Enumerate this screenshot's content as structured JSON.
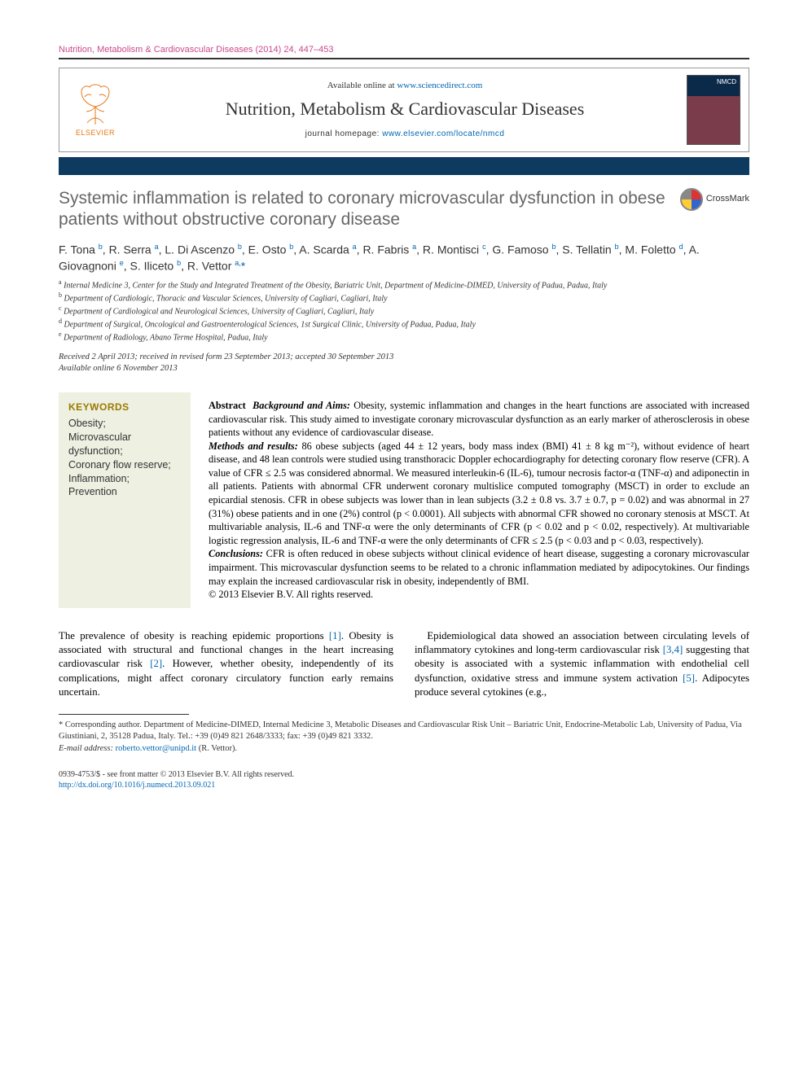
{
  "runningHead": "Nutrition, Metabolism & Cardiovascular Diseases (2014) 24, 447–453",
  "masthead": {
    "availablePrefix": "Available online at ",
    "availableUrlText": "www.sciencedirect.com",
    "journalName": "Nutrition, Metabolism & Cardiovascular Diseases",
    "homepagePrefix": "journal homepage: ",
    "homepageUrlText": "www.elsevier.com/locate/nmcd",
    "elsevierWord": "ELSEVIER"
  },
  "crossmarkLabel": "CrossMark",
  "title": "Systemic inflammation is related to coronary microvascular dysfunction in obese patients without obstructive coronary disease",
  "authorsHtml": "F. Tona <sup>b</sup>, R. Serra <sup>a</sup>, L. Di Ascenzo <sup>b</sup>, E. Osto <sup>b</sup>, A. Scarda <sup>a</sup>, R. Fabris <sup>a</sup>, R. Montisci <sup>c</sup>, G. Famoso <sup>b</sup>, S. Tellatin <sup>b</sup>, M. Foletto <sup>d</sup>, A. Giovagnoni <sup>e</sup>, S. Iliceto <sup>b</sup>, R. Vettor <sup>a,</sup><span class='corr-star'>*</span>",
  "affiliations": [
    {
      "k": "a",
      "t": "Internal Medicine 3, Center for the Study and Integrated Treatment of the Obesity, Bariatric Unit, Department of Medicine-DIMED, University of Padua, Padua, Italy"
    },
    {
      "k": "b",
      "t": "Department of Cardiologic, Thoracic and Vascular Sciences, University of Cagliari, Cagliari, Italy"
    },
    {
      "k": "c",
      "t": "Department of Cardiological and Neurological Sciences, University of Cagliari, Cagliari, Italy"
    },
    {
      "k": "d",
      "t": "Department of Surgical, Oncological and Gastroenterological Sciences, 1st Surgical Clinic, University of Padua, Padua, Italy"
    },
    {
      "k": "e",
      "t": "Department of Radiology, Abano Terme Hospital, Padua, Italy"
    }
  ],
  "dates": {
    "line1": "Received 2 April 2013; received in revised form 23 September 2013; accepted 30 September 2013",
    "line2": "Available online 6 November 2013"
  },
  "keywords": {
    "heading": "KEYWORDS",
    "items": [
      "Obesity;",
      "Microvascular dysfunction;",
      "Coronary flow reserve;",
      "Inflammation;",
      "Prevention"
    ]
  },
  "abstract": {
    "label": "Abstract",
    "bgHead": "Background and Aims:",
    "bg": " Obesity, systemic inflammation and changes in the heart functions are associated with increased cardiovascular risk. This study aimed to investigate coronary microvascular dysfunction as an early marker of atherosclerosis in obese patients without any evidence of cardiovascular disease.",
    "mrHead": "Methods and results:",
    "mr": " 86 obese subjects (aged 44 ± 12 years, body mass index (BMI) 41 ± 8 kg m⁻²), without evidence of heart disease, and 48 lean controls were studied using transthoracic Doppler echocardiography for detecting coronary flow reserve (CFR). A value of CFR ≤ 2.5 was considered abnormal. We measured interleukin-6 (IL-6), tumour necrosis factor-α (TNF-α) and adiponectin in all patients. Patients with abnormal CFR underwent coronary multislice computed tomography (MSCT) in order to exclude an epicardial stenosis. CFR in obese subjects was lower than in lean subjects (3.2 ± 0.8 vs. 3.7 ± 0.7, p = 0.02) and was abnormal in 27 (31%) obese patients and in one (2%) control (p < 0.0001). All subjects with abnormal CFR showed no coronary stenosis at MSCT. At multivariable analysis, IL-6 and TNF-α were the only determinants of CFR (p < 0.02 and p < 0.02, respectively). At multivariable logistic regression analysis, IL-6 and TNF-α were the only determinants of CFR ≤ 2.5 (p < 0.03 and p < 0.03, respectively).",
    "concHead": "Conclusions:",
    "conc": " CFR is often reduced in obese subjects without clinical evidence of heart disease, suggesting a coronary microvascular impairment. This microvascular dysfunction seems to be related to a chronic inflammation mediated by adipocytokines. Our findings may explain the increased cardiovascular risk in obesity, independently of BMI.",
    "copyright": "© 2013 Elsevier B.V. All rights reserved."
  },
  "body": {
    "p1a": "The prevalence of obesity is reaching epidemic proportions ",
    "r1": "[1]",
    "p1b": ". Obesity is associated with structural and functional changes in the heart increasing cardiovascular risk ",
    "r2": "[2]",
    "p1c": ". However, whether obesity, independently of its complications, might affect coronary circulatory function early remains uncertain.",
    "p2a": "Epidemiological data showed an association between circulating levels of inflammatory cytokines and long-term cardiovascular risk ",
    "r34": "[3,4]",
    "p2b": " suggesting that obesity is associated with a systemic inflammation with endothelial cell dysfunction, oxidative stress and immune system activation ",
    "r5": "[5]",
    "p2c": ". Adipocytes produce several cytokines (e.g.,"
  },
  "corrNote": {
    "star": "*",
    "label": " Corresponding author.",
    "text": " Department of Medicine-DIMED, Internal Medicine 3, Metabolic Diseases and Cardiovascular Risk Unit – Bariatric Unit, Endocrine-Metabolic Lab, University of Padua, Via Giustiniani, 2, 35128 Padua, Italy. Tel.: +39 (0)49 821 2648/3333; fax: +39 (0)49 821 3332.",
    "emailLabel": "E-mail address: ",
    "email": "roberto.vettor@unipd.it",
    "emailTail": " (R. Vettor)."
  },
  "bottom": {
    "line1": "0939-4753/$ - see front matter © 2013 Elsevier B.V. All rights reserved.",
    "doi": "http://dx.doi.org/10.1016/j.numecd.2013.09.021"
  }
}
